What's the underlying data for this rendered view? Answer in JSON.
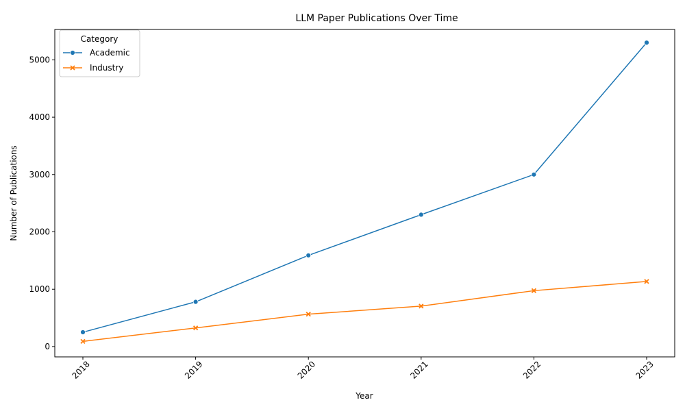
{
  "chart_data": {
    "type": "line",
    "title": "LLM Paper Publications Over Time",
    "xlabel": "Year",
    "ylabel": "Number of Publications",
    "x": [
      "2018",
      "2019",
      "2020",
      "2021",
      "2022",
      "2023"
    ],
    "ylim": [
      -180,
      5530
    ],
    "yticks": [
      0,
      1000,
      2000,
      3000,
      4000,
      5000
    ],
    "grid": false,
    "legend": {
      "title": "Category",
      "placement": "top-left"
    },
    "series": [
      {
        "name": "Academic",
        "values": [
          250,
          780,
          1590,
          2300,
          3000,
          5300
        ],
        "color": "#1f77b4",
        "marker": "circle"
      },
      {
        "name": "Industry",
        "values": [
          90,
          325,
          565,
          705,
          975,
          1135
        ],
        "color": "#ff7f0e",
        "marker": "x"
      }
    ]
  }
}
